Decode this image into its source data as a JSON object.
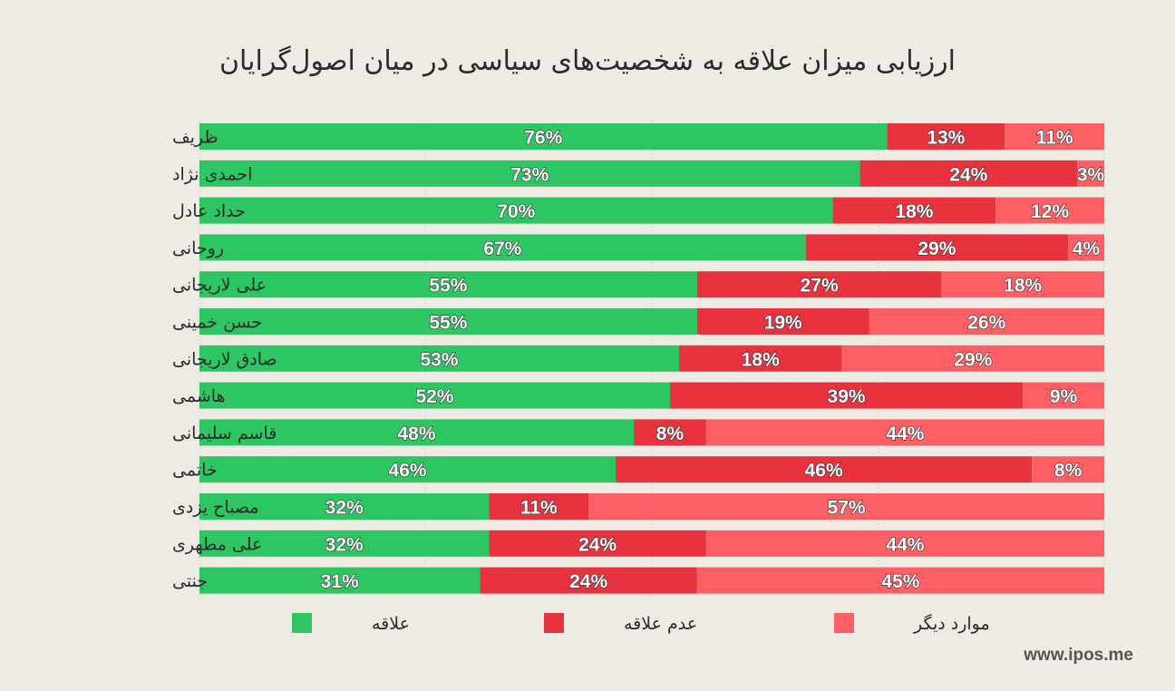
{
  "chart_data": {
    "type": "bar",
    "orientation": "horizontal",
    "stacked": true,
    "title": "ارزیابی میزان علاقه به شخصیت‌های سیاسی در میان اصول‌گرایان",
    "xlabel": "",
    "ylabel": "",
    "xlim": [
      0,
      100
    ],
    "grid": true,
    "legend_position": "bottom",
    "categories": [
      "ظریف",
      "احمدی نژاد",
      "حداد عادل",
      "روحانی",
      "علی لاریجانی",
      "حسن خمینی",
      "صادق لاریجانی",
      "هاشمی",
      "قاسم سلیمانی",
      "خاتمی",
      "مصباح یزدی",
      "علی مطهری",
      "جنتی"
    ],
    "series": [
      {
        "name": "علاقه",
        "color": "#2ec563",
        "values": [
          76,
          73,
          70,
          67,
          55,
          55,
          53,
          52,
          48,
          46,
          32,
          32,
          31
        ]
      },
      {
        "name": "عدم علاقه",
        "color": "#e8333f",
        "values": [
          13,
          24,
          18,
          29,
          27,
          19,
          18,
          39,
          8,
          46,
          11,
          24,
          24
        ]
      },
      {
        "name": "موارد دیگر",
        "color": "#fe5f65",
        "values": [
          11,
          3,
          12,
          4,
          18,
          26,
          29,
          9,
          44,
          8,
          57,
          44,
          45
        ]
      }
    ]
  },
  "watermark": "www.ipos.me"
}
